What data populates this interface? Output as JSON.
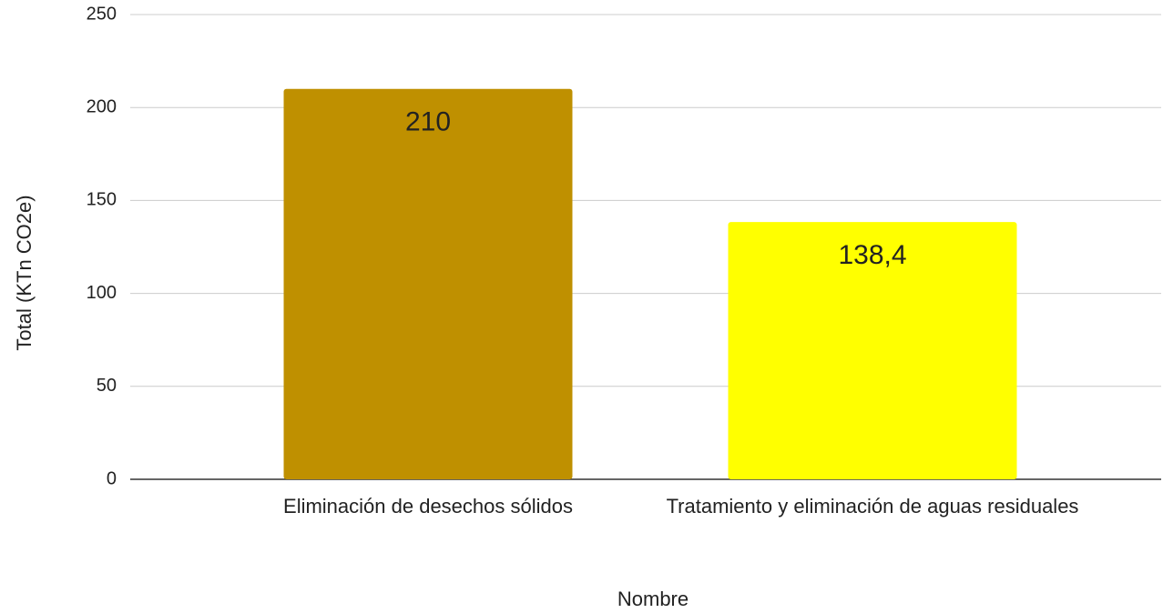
{
  "chart_data": {
    "type": "bar",
    "categories": [
      "Eliminación de desechos sólidos",
      "Tratamiento y eliminación de aguas residuales"
    ],
    "values": [
      210,
      138.4
    ],
    "value_labels": [
      "210",
      "138,4"
    ],
    "colors": [
      "#bf9000",
      "#ffff00"
    ],
    "x_label": "Nombre",
    "y_label": "Total (KTn CO2e)",
    "ylim": [
      0,
      250
    ],
    "yticks": [
      0,
      50,
      100,
      150,
      200,
      250
    ],
    "grid": true
  }
}
